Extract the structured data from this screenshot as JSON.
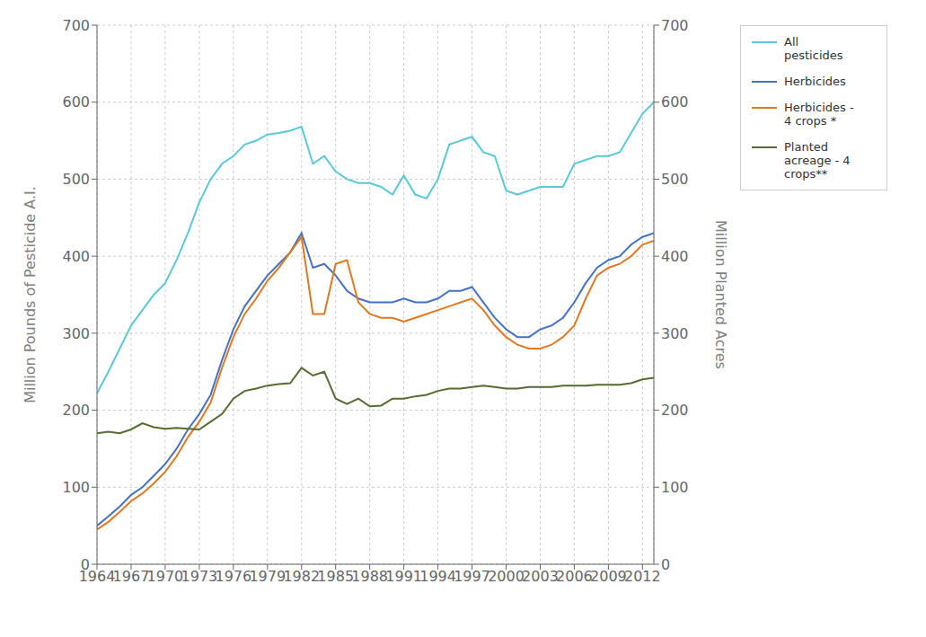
{
  "chart_data": {
    "type": "line",
    "x": [
      1964,
      1965,
      1966,
      1967,
      1968,
      1969,
      1970,
      1971,
      1972,
      1973,
      1974,
      1975,
      1976,
      1977,
      1978,
      1979,
      1980,
      1981,
      1982,
      1983,
      1984,
      1985,
      1986,
      1987,
      1988,
      1989,
      1990,
      1991,
      1992,
      1993,
      1994,
      1995,
      1996,
      1997,
      1998,
      1999,
      2000,
      2001,
      2002,
      2003,
      2004,
      2005,
      2006,
      2007,
      2008,
      2009,
      2010,
      2011,
      2012,
      2013
    ],
    "xlim": [
      1964,
      2013
    ],
    "xticks": [
      1964,
      1967,
      1970,
      1973,
      1976,
      1979,
      1982,
      1985,
      1988,
      1991,
      1994,
      1997,
      2000,
      2003,
      2006,
      2009,
      2012
    ],
    "ylim": [
      0,
      700
    ],
    "yticks": [
      0,
      100,
      200,
      300,
      400,
      500,
      600,
      700
    ],
    "y2lim": [
      0,
      700
    ],
    "y2ticks": [
      0,
      100,
      200,
      300,
      400,
      500,
      600,
      700
    ],
    "ylabel": "Million Pounds of Pesticide A.I.",
    "y2label": "Million Planted Acres",
    "grid": true,
    "legend": "right",
    "series": [
      {
        "name": "All\npesticides",
        "color": "#5BC8D8",
        "values": [
          222,
          250,
          280,
          310,
          330,
          350,
          365,
          395,
          430,
          470,
          500,
          520,
          530,
          545,
          550,
          558,
          560,
          563,
          568,
          520,
          530,
          510,
          500,
          495,
          495,
          490,
          480,
          505,
          480,
          475,
          500,
          545,
          550,
          555,
          535,
          530,
          485,
          480,
          485,
          490,
          490,
          490,
          520,
          525,
          530,
          530,
          535,
          560,
          585,
          600
        ]
      },
      {
        "name": "Herbicides",
        "color": "#4472C4",
        "values": [
          50,
          62,
          75,
          90,
          100,
          115,
          130,
          150,
          175,
          195,
          220,
          265,
          305,
          335,
          355,
          375,
          390,
          405,
          430,
          385,
          390,
          375,
          355,
          345,
          340,
          340,
          340,
          345,
          340,
          340,
          345,
          355,
          355,
          360,
          340,
          320,
          305,
          295,
          295,
          305,
          310,
          320,
          340,
          365,
          385,
          395,
          400,
          415,
          425,
          430
        ]
      },
      {
        "name": "Herbicides -\n4 crops *",
        "color": "#E07820",
        "values": [
          45,
          55,
          68,
          82,
          92,
          105,
          120,
          140,
          165,
          185,
          210,
          255,
          295,
          325,
          345,
          368,
          385,
          405,
          425,
          325,
          325,
          390,
          395,
          340,
          325,
          320,
          320,
          315,
          320,
          325,
          330,
          335,
          340,
          345,
          330,
          310,
          295,
          285,
          280,
          280,
          285,
          295,
          310,
          345,
          375,
          385,
          390,
          400,
          415,
          420
        ]
      },
      {
        "name": "Planted\nacreage - 4\ncrops**",
        "color": "#556B2F",
        "axis": "y2",
        "values": [
          170,
          172,
          170,
          175,
          183,
          178,
          176,
          177,
          176,
          175,
          185,
          195,
          215,
          225,
          228,
          232,
          234,
          235,
          255,
          245,
          250,
          215,
          208,
          215,
          205,
          206,
          215,
          215,
          218,
          220,
          225,
          228,
          228,
          230,
          232,
          230,
          228,
          228,
          230,
          230,
          230,
          232,
          232,
          232,
          233,
          233,
          233,
          235,
          240,
          242
        ]
      }
    ]
  }
}
